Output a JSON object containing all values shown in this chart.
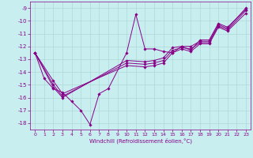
{
  "title": "",
  "xlabel": "Windchill (Refroidissement éolien,°C)",
  "background_color": "#c8eef0",
  "grid_color": "#b0d8d8",
  "line_color": "#880088",
  "xlim": [
    -0.5,
    23.5
  ],
  "ylim": [
    -18.5,
    -8.5
  ],
  "xticks": [
    0,
    1,
    2,
    3,
    4,
    5,
    6,
    7,
    8,
    9,
    10,
    11,
    12,
    13,
    14,
    15,
    16,
    17,
    18,
    19,
    20,
    21,
    22,
    23
  ],
  "yticks": [
    -18,
    -17,
    -16,
    -15,
    -14,
    -13,
    -12,
    -11,
    -10,
    -9
  ],
  "series": [
    {
      "x": [
        0,
        1,
        2,
        3,
        4,
        5,
        6,
        7,
        8,
        10,
        11,
        12,
        13,
        14,
        15,
        16,
        17,
        18,
        19,
        20,
        21,
        23
      ],
      "y": [
        -12.5,
        -14.5,
        -15.3,
        -15.6,
        -16.3,
        -17.0,
        -18.1,
        -15.7,
        -15.3,
        -12.5,
        -9.5,
        -12.2,
        -12.2,
        -12.4,
        -12.5,
        -12.0,
        -12.3,
        -11.5,
        -11.5,
        -10.2,
        -10.5,
        -9.1
      ],
      "marker": true
    },
    {
      "x": [
        0,
        2,
        3,
        10,
        12,
        13,
        14,
        15,
        16,
        17,
        18,
        19,
        20,
        21,
        23
      ],
      "y": [
        -12.5,
        -14.7,
        -15.7,
        -13.5,
        -13.6,
        -13.5,
        -13.3,
        -12.5,
        -12.2,
        -12.4,
        -11.8,
        -11.8,
        -10.5,
        -10.8,
        -9.4
      ],
      "marker": true
    },
    {
      "x": [
        0,
        2,
        3,
        10,
        12,
        13,
        14,
        15,
        16,
        17,
        18,
        19,
        20,
        21,
        23
      ],
      "y": [
        -12.5,
        -15.0,
        -15.9,
        -13.3,
        -13.4,
        -13.3,
        -13.1,
        -12.3,
        -12.1,
        -12.2,
        -11.7,
        -11.7,
        -10.4,
        -10.7,
        -9.2
      ],
      "marker": true
    },
    {
      "x": [
        0,
        2,
        3,
        10,
        12,
        13,
        14,
        15,
        16,
        17,
        18,
        19,
        20,
        21,
        23
      ],
      "y": [
        -12.5,
        -15.2,
        -16.0,
        -13.1,
        -13.2,
        -13.1,
        -12.9,
        -12.1,
        -12.0,
        -12.0,
        -11.6,
        -11.6,
        -10.3,
        -10.6,
        -9.0
      ],
      "marker": true
    }
  ]
}
